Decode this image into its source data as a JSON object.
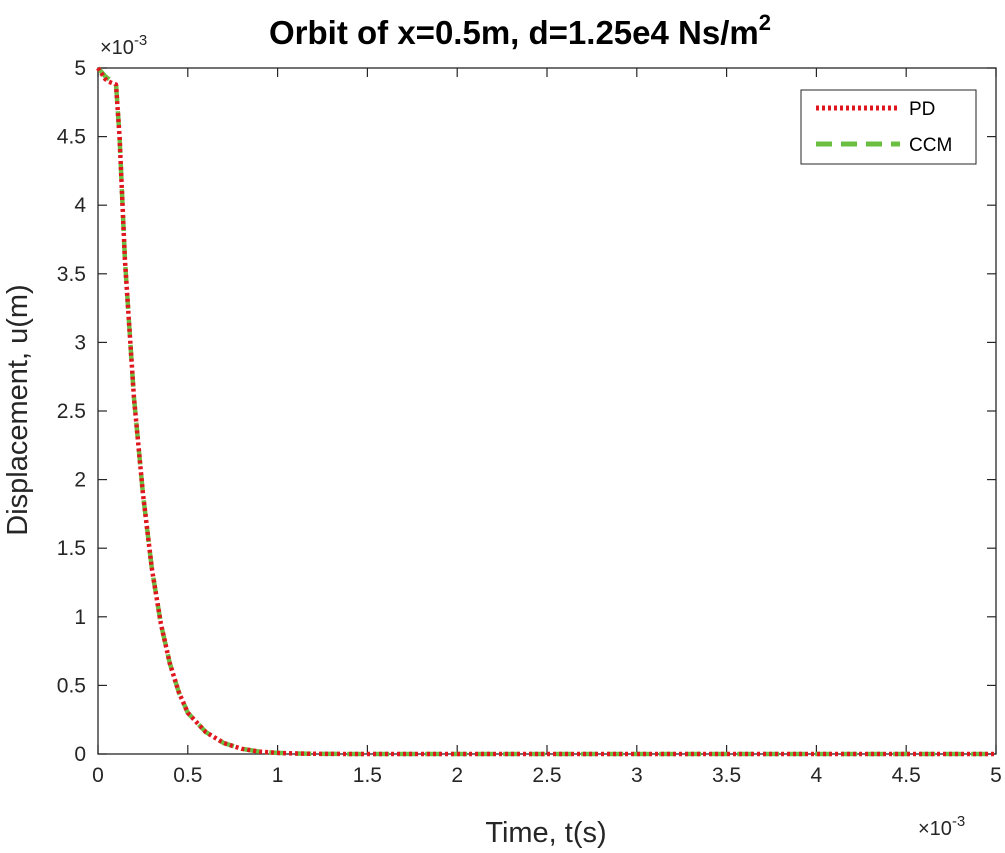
{
  "chart_data": {
    "type": "line",
    "title": "Orbit of x=0.5m, d=1.25e4 Ns/m",
    "title_superscript": "2",
    "xlabel": "Time, t(s)",
    "ylabel": "Displacement, u(m)",
    "x_multiplier_label": "×10",
    "x_multiplier_exp": "-3",
    "y_multiplier_label": "×10",
    "y_multiplier_exp": "-3",
    "xlim": [
      0,
      0.005
    ],
    "ylim": [
      0,
      0.005
    ],
    "x_ticks": [
      0,
      0.0005,
      0.001,
      0.0015,
      0.002,
      0.0025,
      0.003,
      0.0035,
      0.004,
      0.0045,
      0.005
    ],
    "x_tick_labels": [
      "0",
      "0.5",
      "1",
      "1.5",
      "2",
      "2.5",
      "3",
      "3.5",
      "4",
      "4.5",
      "5"
    ],
    "y_ticks": [
      0,
      0.0005,
      0.001,
      0.0015,
      0.002,
      0.0025,
      0.003,
      0.0035,
      0.004,
      0.0045,
      0.005
    ],
    "y_tick_labels": [
      "0",
      "0.5",
      "1",
      "1.5",
      "2",
      "2.5",
      "3",
      "3.5",
      "4",
      "4.5",
      "5"
    ],
    "grid": false,
    "legend_position": "top-right",
    "series": [
      {
        "name": "PD",
        "color": "#e0161e",
        "style": "dotted",
        "x": [
          0,
          2e-05,
          4e-05,
          6e-05,
          8e-05,
          0.0001,
          0.00012,
          0.00015,
          0.0002,
          0.00025,
          0.0003,
          0.00035,
          0.0004,
          0.00045,
          0.0005,
          0.0006,
          0.0007,
          0.0008,
          0.0009,
          0.001,
          0.0011,
          0.0012,
          0.0013,
          0.0015,
          0.002,
          0.0025,
          0.003,
          0.0035,
          0.004,
          0.0045,
          0.005
        ],
        "y": [
          0.005,
          0.00496,
          0.00492,
          0.0049,
          0.00489,
          0.00488,
          0.0045,
          0.0036,
          0.0026,
          0.0019,
          0.00135,
          0.00095,
          0.00066,
          0.00045,
          0.0003,
          0.00016,
          8e-05,
          3.8e-05,
          1.7e-05,
          8e-06,
          3.5e-06,
          1.5e-06,
          6e-07,
          1e-07,
          0,
          0,
          0,
          0,
          0,
          0,
          0
        ]
      },
      {
        "name": "CCM",
        "color": "#6abf40",
        "style": "dashed",
        "x": [
          0,
          2e-05,
          4e-05,
          6e-05,
          8e-05,
          0.0001,
          0.00012,
          0.00015,
          0.0002,
          0.00025,
          0.0003,
          0.00035,
          0.0004,
          0.00045,
          0.0005,
          0.0006,
          0.0007,
          0.0008,
          0.0009,
          0.001,
          0.0011,
          0.0012,
          0.0013,
          0.0015,
          0.002,
          0.0025,
          0.003,
          0.0035,
          0.004,
          0.0045,
          0.005
        ],
        "y": [
          0.005,
          0.00497,
          0.00494,
          0.00492,
          0.0049,
          0.00489,
          0.0045,
          0.0036,
          0.0026,
          0.0019,
          0.00135,
          0.00095,
          0.00066,
          0.00045,
          0.0003,
          0.00016,
          8e-05,
          3.8e-05,
          1.7e-05,
          8e-06,
          3.5e-06,
          1.5e-06,
          6e-07,
          1e-07,
          0,
          0,
          0,
          0,
          0,
          0,
          0
        ]
      }
    ]
  }
}
